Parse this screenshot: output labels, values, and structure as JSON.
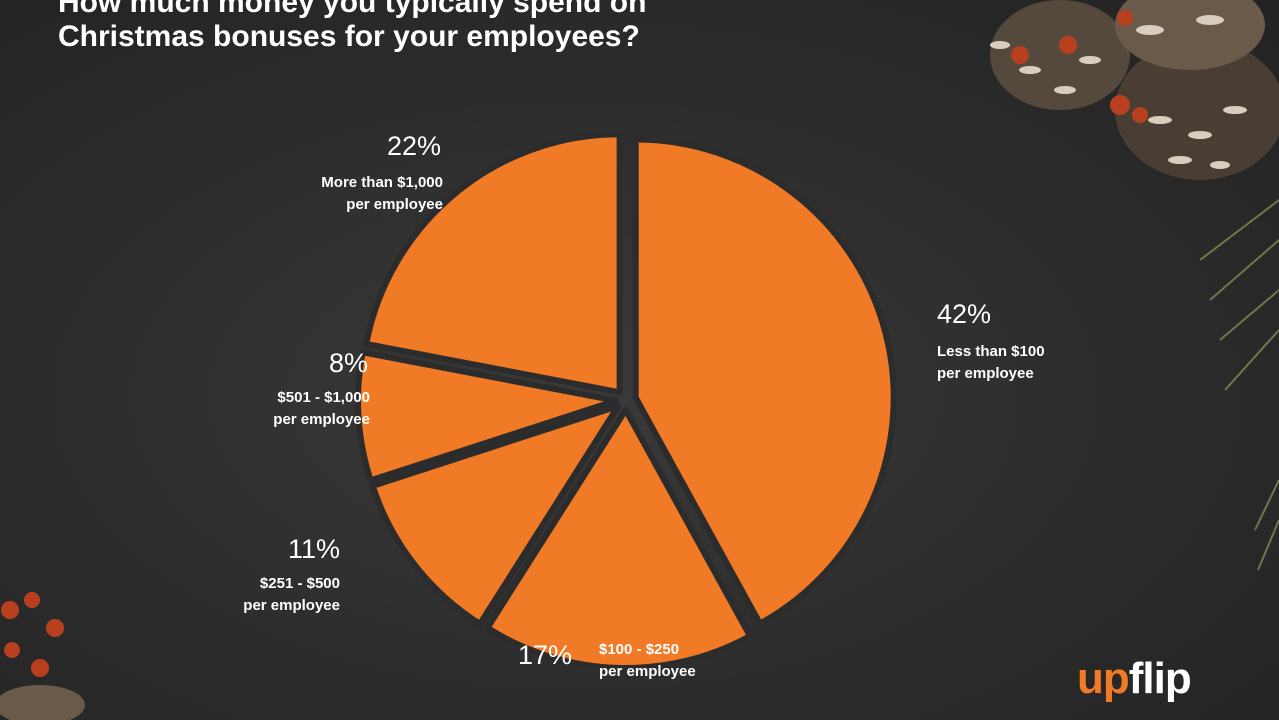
{
  "title_lines": [
    "How much money you typically spend on",
    "Christmas bonuses for your employees?"
  ],
  "colors": {
    "slice": "#f07a26",
    "background": "#2c2c2c",
    "text": "#ffffff"
  },
  "brand": {
    "logo": "upflip",
    "logo_part1": "up",
    "logo_part2": "flip"
  },
  "chart_data": {
    "type": "pie",
    "exploded": true,
    "slices": [
      {
        "value": 42,
        "label": "42%",
        "desc": [
          "Less than $100",
          "per employee"
        ]
      },
      {
        "value": 17,
        "label": "17%",
        "desc": [
          "$100 - $250",
          "per employee"
        ]
      },
      {
        "value": 11,
        "label": "11%",
        "desc": [
          "$251 - $500",
          "per employee"
        ]
      },
      {
        "value": 8,
        "label": "8%",
        "desc": [
          "$501 - $1,000",
          "per employee"
        ]
      },
      {
        "value": 22,
        "label": "22%",
        "desc": [
          "More than $1,000",
          "per employee"
        ]
      }
    ]
  }
}
